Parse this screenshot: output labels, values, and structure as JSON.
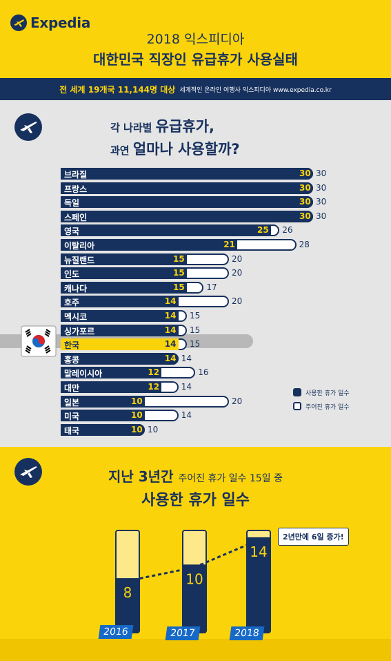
{
  "header": {
    "brand": "Expedia",
    "title_line1": "2018 익스피디아",
    "title_line2": "대한민국 직장인 유급휴가 사용실태",
    "band_main": "전 세계 19개국 11,144명 대상",
    "band_sub": "세계적인 온라인 여행사 익스피디아 www.expedia.co.kr"
  },
  "section1": {
    "q_line1_small": "각 나라별",
    "q_line1_big": "유급휴가,",
    "q_line2_small": "과연",
    "q_line2_big": "얼마나 사용할까?",
    "legend_used": "사용한 휴가 일수",
    "legend_given": "주어진 휴가 일수"
  },
  "section2": {
    "q_big": "지난 3년간",
    "q_small": "주어진 휴가 일수 15일 중",
    "q_line2": "사용한 휴가 일수",
    "note": "2년만에 6일 증가!"
  },
  "colors": {
    "navy": "#17315e",
    "yellow": "#fbd30a",
    "light_yellow": "#fde98a",
    "highlight": "#fbd30a",
    "blue": "#1669c7"
  },
  "chart_data": [
    {
      "type": "bar",
      "orientation": "horizontal",
      "categories": [
        "브라질",
        "프랑스",
        "독일",
        "스페인",
        "영국",
        "이탈리아",
        "뉴질랜드",
        "인도",
        "캐나다",
        "호주",
        "멕시코",
        "싱가포르",
        "한국",
        "홍콩",
        "말레이시아",
        "대만",
        "일본",
        "미국",
        "태국"
      ],
      "series": [
        {
          "name": "사용한 휴가 일수",
          "values": [
            30,
            30,
            30,
            30,
            25,
            21,
            15,
            15,
            15,
            14,
            14,
            14,
            14,
            14,
            12,
            12,
            10,
            10,
            10
          ]
        },
        {
          "name": "주어진 휴가 일수",
          "values": [
            30,
            30,
            30,
            30,
            26,
            28,
            20,
            20,
            17,
            20,
            15,
            15,
            15,
            14,
            16,
            14,
            20,
            14,
            10
          ]
        }
      ],
      "highlight": "한국",
      "legend": "bottom-right"
    },
    {
      "type": "bar",
      "categories": [
        "2016",
        "2017",
        "2018"
      ],
      "values": [
        8,
        10,
        14
      ],
      "max": 15
    }
  ]
}
